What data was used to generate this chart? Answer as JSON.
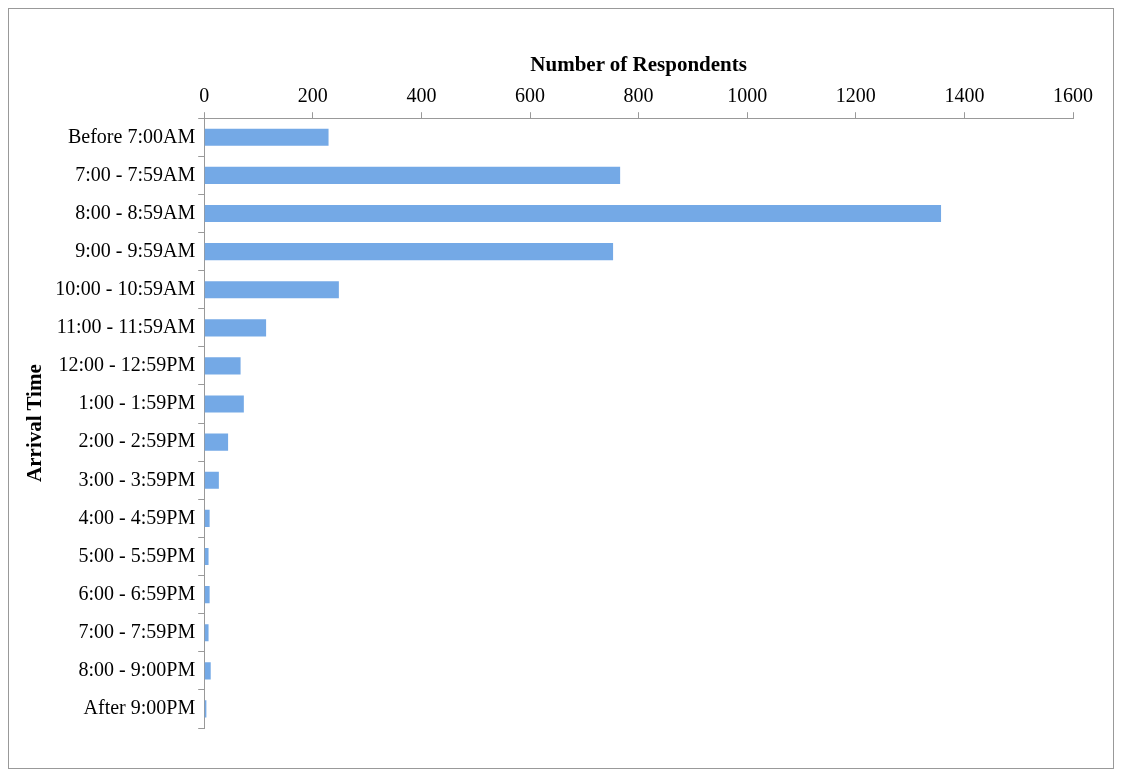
{
  "chart_data": {
    "type": "bar",
    "orientation": "horizontal",
    "xlabel": "Number of Respondents",
    "ylabel": "Arrival Time",
    "categories": [
      "Before 7:00AM",
      "7:00 - 7:59AM",
      "8:00 - 8:59AM",
      "9:00 - 9:59AM",
      "10:00 - 10:59AM",
      "11:00 - 11:59AM",
      "12:00 - 12:59PM",
      "1:00 - 1:59PM",
      "2:00 - 2:59PM",
      "3:00 - 3:59PM",
      "4:00 - 4:59PM",
      "5:00 - 5:59PM",
      "6:00 - 6:59PM",
      "7:00 - 7:59PM",
      "8:00 - 9:00PM",
      "After 9:00PM"
    ],
    "values": [
      229,
      766,
      1357,
      753,
      248,
      114,
      67,
      73,
      44,
      27,
      10,
      8,
      10,
      8,
      12,
      4
    ],
    "color": "#74a9e6",
    "xlim": [
      0,
      1600
    ],
    "xticks": [
      0,
      200,
      400,
      600,
      800,
      1000,
      1200,
      1400,
      1600
    ],
    "grid": false,
    "legend": false
  }
}
